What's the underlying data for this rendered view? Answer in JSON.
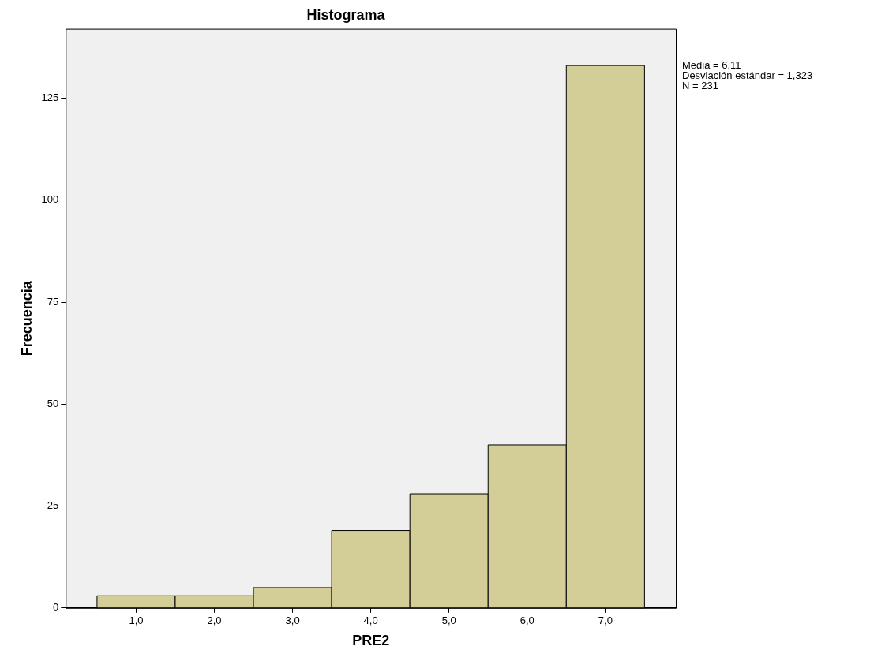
{
  "chart_data": {
    "type": "histogram",
    "title": "Histograma",
    "xlabel": "PRE2",
    "ylabel": "Frecuencia",
    "bins": [
      0.5,
      1.5,
      2.5,
      3.5,
      4.5,
      5.5,
      6.5,
      7.5
    ],
    "values": [
      3,
      3,
      5,
      19,
      28,
      40,
      133
    ],
    "color": "#d3ce97",
    "xlim": [
      0.1,
      7.9
    ],
    "xticks": [
      {
        "value": 1,
        "label": "1,0"
      },
      {
        "value": 2,
        "label": "2,0"
      },
      {
        "value": 3,
        "label": "3,0"
      },
      {
        "value": 4,
        "label": "4,0"
      },
      {
        "value": 5,
        "label": "5,0"
      },
      {
        "value": 6,
        "label": "6,0"
      },
      {
        "value": 7,
        "label": "7,0"
      }
    ],
    "ylim": [
      0,
      142
    ],
    "yticks": [
      0,
      25,
      50,
      75,
      100,
      125
    ],
    "grid": false,
    "legend": false,
    "annotations": [
      "Media = 6,11",
      "Desviación estándar = 1,323",
      "N = 231"
    ]
  }
}
